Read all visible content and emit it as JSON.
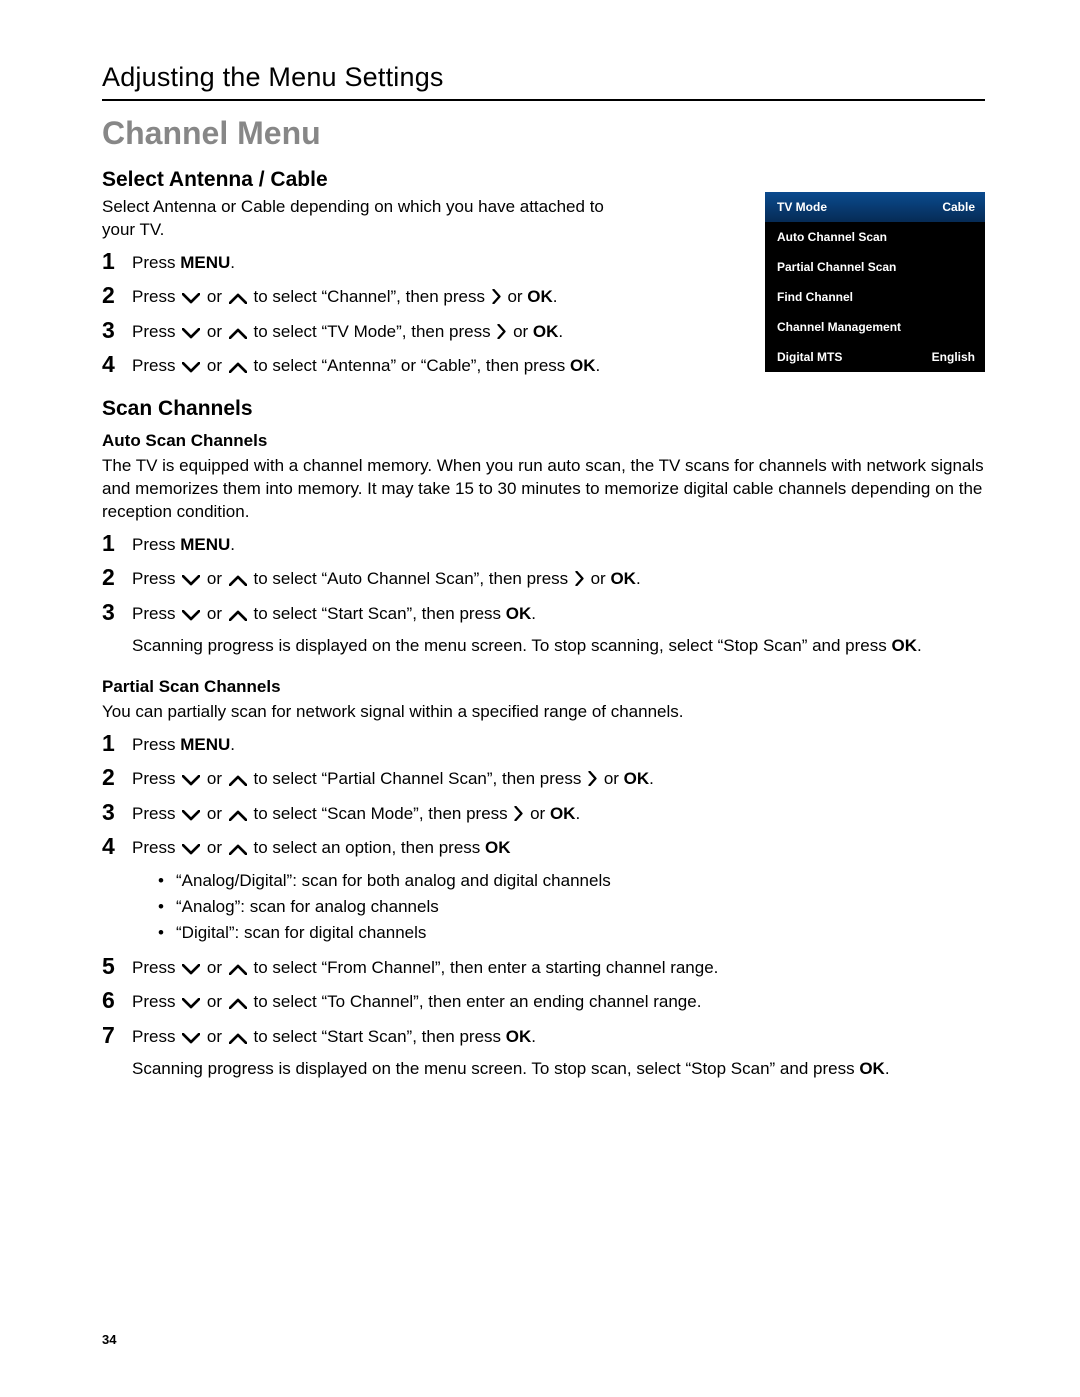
{
  "header": {
    "title": "Adjusting the Menu Settings"
  },
  "main_heading": "Channel Menu",
  "section1": {
    "title": "Select Antenna / Cable",
    "intro": "Select Antenna or Cable depending on which you have attached to your TV.",
    "steps": {
      "s1_a": "Press ",
      "s1_b": "MENU",
      "s1_c": ".",
      "s2_a": "Press ",
      "s2_b": " or ",
      "s2_c": " to select “Channel”, then press ",
      "s2_d": " or ",
      "s2_e": "OK",
      "s2_f": ".",
      "s3_a": "Press ",
      "s3_b": " or ",
      "s3_c": " to select “TV Mode”, then press ",
      "s3_d": " or ",
      "s3_e": "OK",
      "s3_f": ".",
      "s4_a": "Press ",
      "s4_b": " or ",
      "s4_c": " to select “Antenna” or “Cable”, then press ",
      "s4_d": "OK",
      "s4_e": "."
    }
  },
  "section2": {
    "title": "Scan Channels",
    "sub1": {
      "title": "Auto Scan Channels",
      "intro": "The TV is equipped with a channel memory. When you run auto scan, the TV scans for channels with network signals and memorizes them into memory. It may take 15 to 30 minutes to memorize digital cable channels depending on the reception condition.",
      "s1_a": "Press ",
      "s1_b": "MENU",
      "s1_c": ".",
      "s2_a": "Press ",
      "s2_b": " or ",
      "s2_c": " to select “Auto Channel Scan”, then press ",
      "s2_d": " or ",
      "s2_e": "OK",
      "s2_f": ".",
      "s3_a": "Press ",
      "s3_b": " or ",
      "s3_c": " to select “Start Scan”, then press ",
      "s3_d": "OK",
      "s3_e": ".",
      "note_a": "Scanning progress is displayed on the menu screen. To stop scanning, select “Stop Scan” and press ",
      "note_b": "OK",
      "note_c": "."
    },
    "sub2": {
      "title": "Partial Scan Channels",
      "intro": "You can partially scan for network signal within a specified range of channels.",
      "s1_a": "Press ",
      "s1_b": "MENU",
      "s1_c": ".",
      "s2_a": "Press ",
      "s2_b": " or ",
      "s2_c": " to select “Partial Channel Scan”, then press ",
      "s2_d": " or ",
      "s2_e": "OK",
      "s2_f": ".",
      "s3_a": "Press ",
      "s3_b": " or ",
      "s3_c": " to select “Scan Mode”, then press ",
      "s3_d": " or ",
      "s3_e": "OK",
      "s3_f": ".",
      "s4_a": "Press ",
      "s4_b": " or ",
      "s4_c": " to select an option, then press ",
      "s4_d": "OK",
      "b1": "“Analog/Digital”: scan for both analog and digital channels",
      "b2": "“Analog”: scan for analog channels",
      "b3": "“Digital”: scan for digital channels",
      "s5_a": "Press ",
      "s5_b": " or ",
      "s5_c": " to select “From Channel”, then enter a starting channel range.",
      "s6_a": "Press ",
      "s6_b": " or ",
      "s6_c": " to select “To Channel”, then enter an ending channel range.",
      "s7_a": "Press ",
      "s7_b": " or ",
      "s7_c": " to select “Start Scan”, then press ",
      "s7_d": "OK",
      "s7_e": ".",
      "note_a": "Scanning progress is displayed on the menu screen. To stop scan, select “Stop Scan” and press ",
      "note_b": "OK",
      "note_c": "."
    }
  },
  "osd": {
    "rows": [
      {
        "label": "TV Mode",
        "value": "Cable",
        "hl": true
      },
      {
        "label": "Auto Channel Scan",
        "value": ""
      },
      {
        "label": "Partial Channel Scan",
        "value": ""
      },
      {
        "label": "Find Channel",
        "value": ""
      },
      {
        "label": "Channel Management",
        "value": ""
      },
      {
        "label": "Digital MTS",
        "value": "English"
      }
    ]
  },
  "nums": {
    "n1": "1",
    "n2": "2",
    "n3": "3",
    "n4": "4",
    "n5": "5",
    "n6": "6",
    "n7": "7"
  },
  "page_number": "34"
}
